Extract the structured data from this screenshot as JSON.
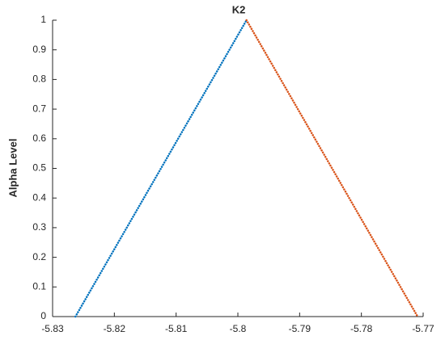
{
  "chart_data": {
    "type": "line",
    "title": "K2",
    "y_label": "Alpha Level",
    "series": [
      {
        "color": "#0072bd",
        "x": [
          -5.8263,
          -5.7986
        ],
        "values": [
          0,
          1
        ]
      },
      {
        "color": "#d95319",
        "x": [
          -5.7986,
          -5.7709
        ],
        "values": [
          1,
          0
        ]
      }
    ],
    "xlim": [
      -5.83,
      -5.77
    ],
    "xticks": [
      -5.83,
      -5.82,
      -5.81,
      -5.8,
      -5.79,
      -5.78,
      -5.77
    ],
    "ylim": [
      0,
      1
    ],
    "yticks": [
      0,
      0.1,
      0.2,
      0.3,
      0.4,
      0.5,
      0.6,
      0.7,
      0.8,
      0.9,
      1
    ],
    "grid": false
  }
}
